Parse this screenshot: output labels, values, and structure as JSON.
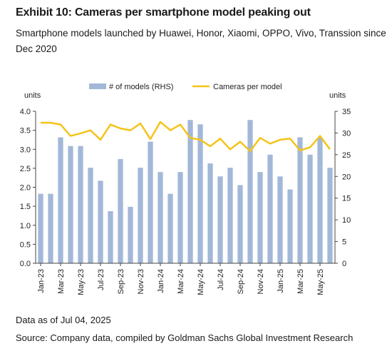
{
  "header": {
    "title": "Exhibit 10: Cameras per smartphone model peaking out",
    "subtitle": "Smartphone models launched by Huawei, Honor, Xiaomi, OPPO, Vivo, Transsion since Dec 2020"
  },
  "footer": {
    "note": "Data as of Jul 04, 2025",
    "source": "Source: Company data, compiled by Goldman Sachs Global Investment Research"
  },
  "chart_data": {
    "type": "bar",
    "categories": [
      "Jan-23",
      "Feb-23",
      "Mar-23",
      "Apr-23",
      "May-23",
      "Jun-23",
      "Jul-23",
      "Aug-23",
      "Sep-23",
      "Oct-23",
      "Nov-23",
      "Dec-23",
      "Jan-24",
      "Feb-24",
      "Mar-24",
      "Apr-24",
      "May-24",
      "Jun-24",
      "Jul-24",
      "Aug-24",
      "Sep-24",
      "Oct-24",
      "Nov-24",
      "Dec-24",
      "Jan-25",
      "Feb-25",
      "Mar-25",
      "Apr-25",
      "May-25",
      "Jun-25"
    ],
    "tick_labels": [
      "Jan-23",
      "Mar-23",
      "May-23",
      "Jul-23",
      "Sep-23",
      "Nov-23",
      "Jan-24",
      "Mar-24",
      "May-24",
      "Jul-24",
      "Sep-24",
      "Nov-24",
      "Jan-25",
      "Mar-25",
      "May-25"
    ],
    "series": [
      {
        "name": "# of models (RHS)",
        "kind": "bar",
        "axis": "right",
        "color": "#a3b8d8",
        "values": [
          16,
          16,
          29,
          27,
          27,
          22,
          19,
          12,
          24,
          13,
          22,
          28,
          21,
          16,
          21,
          33,
          32,
          23,
          20,
          22,
          18,
          33,
          21,
          25,
          20,
          17,
          29,
          25,
          29,
          22
        ]
      },
      {
        "name": "Cameras per model",
        "kind": "line",
        "axis": "left",
        "color": "#f5c318",
        "values": [
          3.7,
          3.7,
          3.65,
          3.35,
          3.42,
          3.5,
          3.25,
          3.65,
          3.55,
          3.5,
          3.68,
          3.27,
          3.72,
          3.5,
          3.65,
          3.3,
          3.25,
          3.08,
          3.28,
          3.0,
          3.2,
          2.95,
          3.3,
          3.15,
          3.25,
          3.28,
          2.97,
          3.05,
          3.35,
          3.0
        ]
      }
    ],
    "y_left": {
      "label": "units",
      "range": [
        0,
        4.0
      ],
      "ticks": [
        "0.0",
        "0.5",
        "1.0",
        "1.5",
        "2.0",
        "2.5",
        "3.0",
        "3.5",
        "4.0"
      ]
    },
    "y_right": {
      "label": "units",
      "range": [
        0,
        35
      ],
      "ticks": [
        "0",
        "5",
        "10",
        "15",
        "20",
        "25",
        "30",
        "35"
      ]
    },
    "legend_position": "top",
    "grid": false
  }
}
